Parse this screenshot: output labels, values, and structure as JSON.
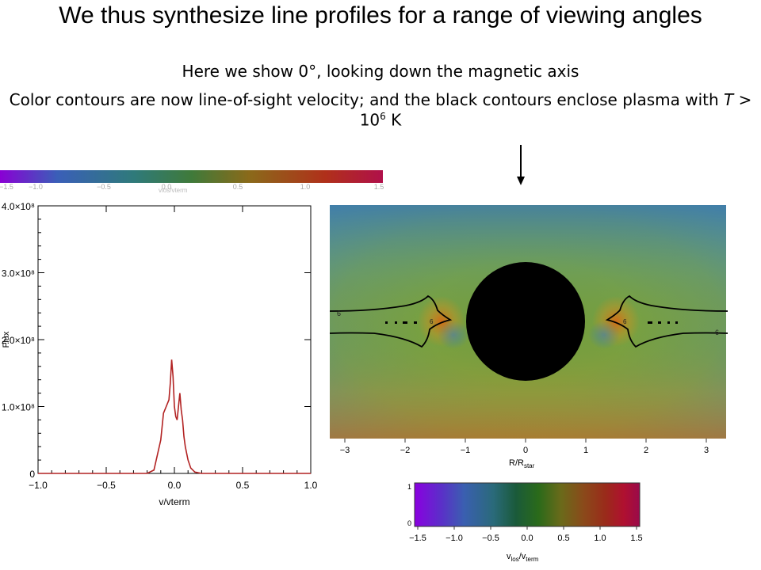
{
  "slide": {
    "title": "We thus synthesize line profiles for a range of viewing angles",
    "subtitle1": "Here we show 0°, looking down the magnetic axis",
    "subtitle2_pre": "Color contours are now line-of-sight velocity; and the black contours enclose plasma with ",
    "subtitle2_T": "T",
    "subtitle2_gt": " > 10",
    "subtitle2_exp": "6",
    "subtitle2_unit": " K"
  },
  "top_colorbar": {
    "ticks": [
      "-1.5",
      "-1.0",
      "-0.5",
      "0.0",
      "0.5",
      "1.0",
      "1.5"
    ],
    "label": "vlos/vterm"
  },
  "map": {
    "xlabel_main": "R/R",
    "xlabel_sub": "star",
    "xticks": [
      "-3",
      "-2",
      "-1",
      "0",
      "1",
      "2",
      "3"
    ],
    "contour_label_left": "6",
    "contour_label_right": "6",
    "contour_label_inner_left": "6",
    "contour_label_inner_right": "6"
  },
  "bottom_colorbar": {
    "yticks": [
      "1",
      "0"
    ],
    "xticks": [
      "-1.5",
      "-1.0",
      "-0.5",
      "0.0",
      "0.5",
      "1.0",
      "1.5"
    ],
    "label_main": "v",
    "label_sub1": "los",
    "label_sep": "/v",
    "label_sub2": "term"
  },
  "chart_data": {
    "type": "line",
    "title": "",
    "xlabel": "v/vterm",
    "ylabel": "Flux",
    "xlim": [
      -1.0,
      1.0
    ],
    "ylim": [
      0,
      400000000.0
    ],
    "xticks": [
      "-1.0",
      "-0.5",
      "0.0",
      "0.5",
      "1.0"
    ],
    "yticks": [
      "0",
      "1.0×10⁸",
      "2.0×10⁸",
      "3.0×10⁸",
      "4.0×10⁸"
    ],
    "series": [
      {
        "color": "#b22222",
        "x": [
          -1.0,
          -0.2,
          -0.15,
          -0.1,
          -0.08,
          -0.06,
          -0.04,
          -0.03,
          -0.02,
          -0.01,
          0.0,
          0.01,
          0.02,
          0.03,
          0.04,
          0.05,
          0.06,
          0.07,
          0.08,
          0.1,
          0.12,
          0.15,
          0.2,
          1.0
        ],
        "y": [
          0,
          0,
          5000000.0,
          50000000.0,
          90000000.0,
          100000000.0,
          110000000.0,
          135000000.0,
          170000000.0,
          145000000.0,
          100000000.0,
          85000000.0,
          80000000.0,
          100000000.0,
          120000000.0,
          95000000.0,
          80000000.0,
          55000000.0,
          40000000.0,
          20000000.0,
          8000000.0,
          2000000.0,
          0,
          0
        ]
      }
    ]
  }
}
